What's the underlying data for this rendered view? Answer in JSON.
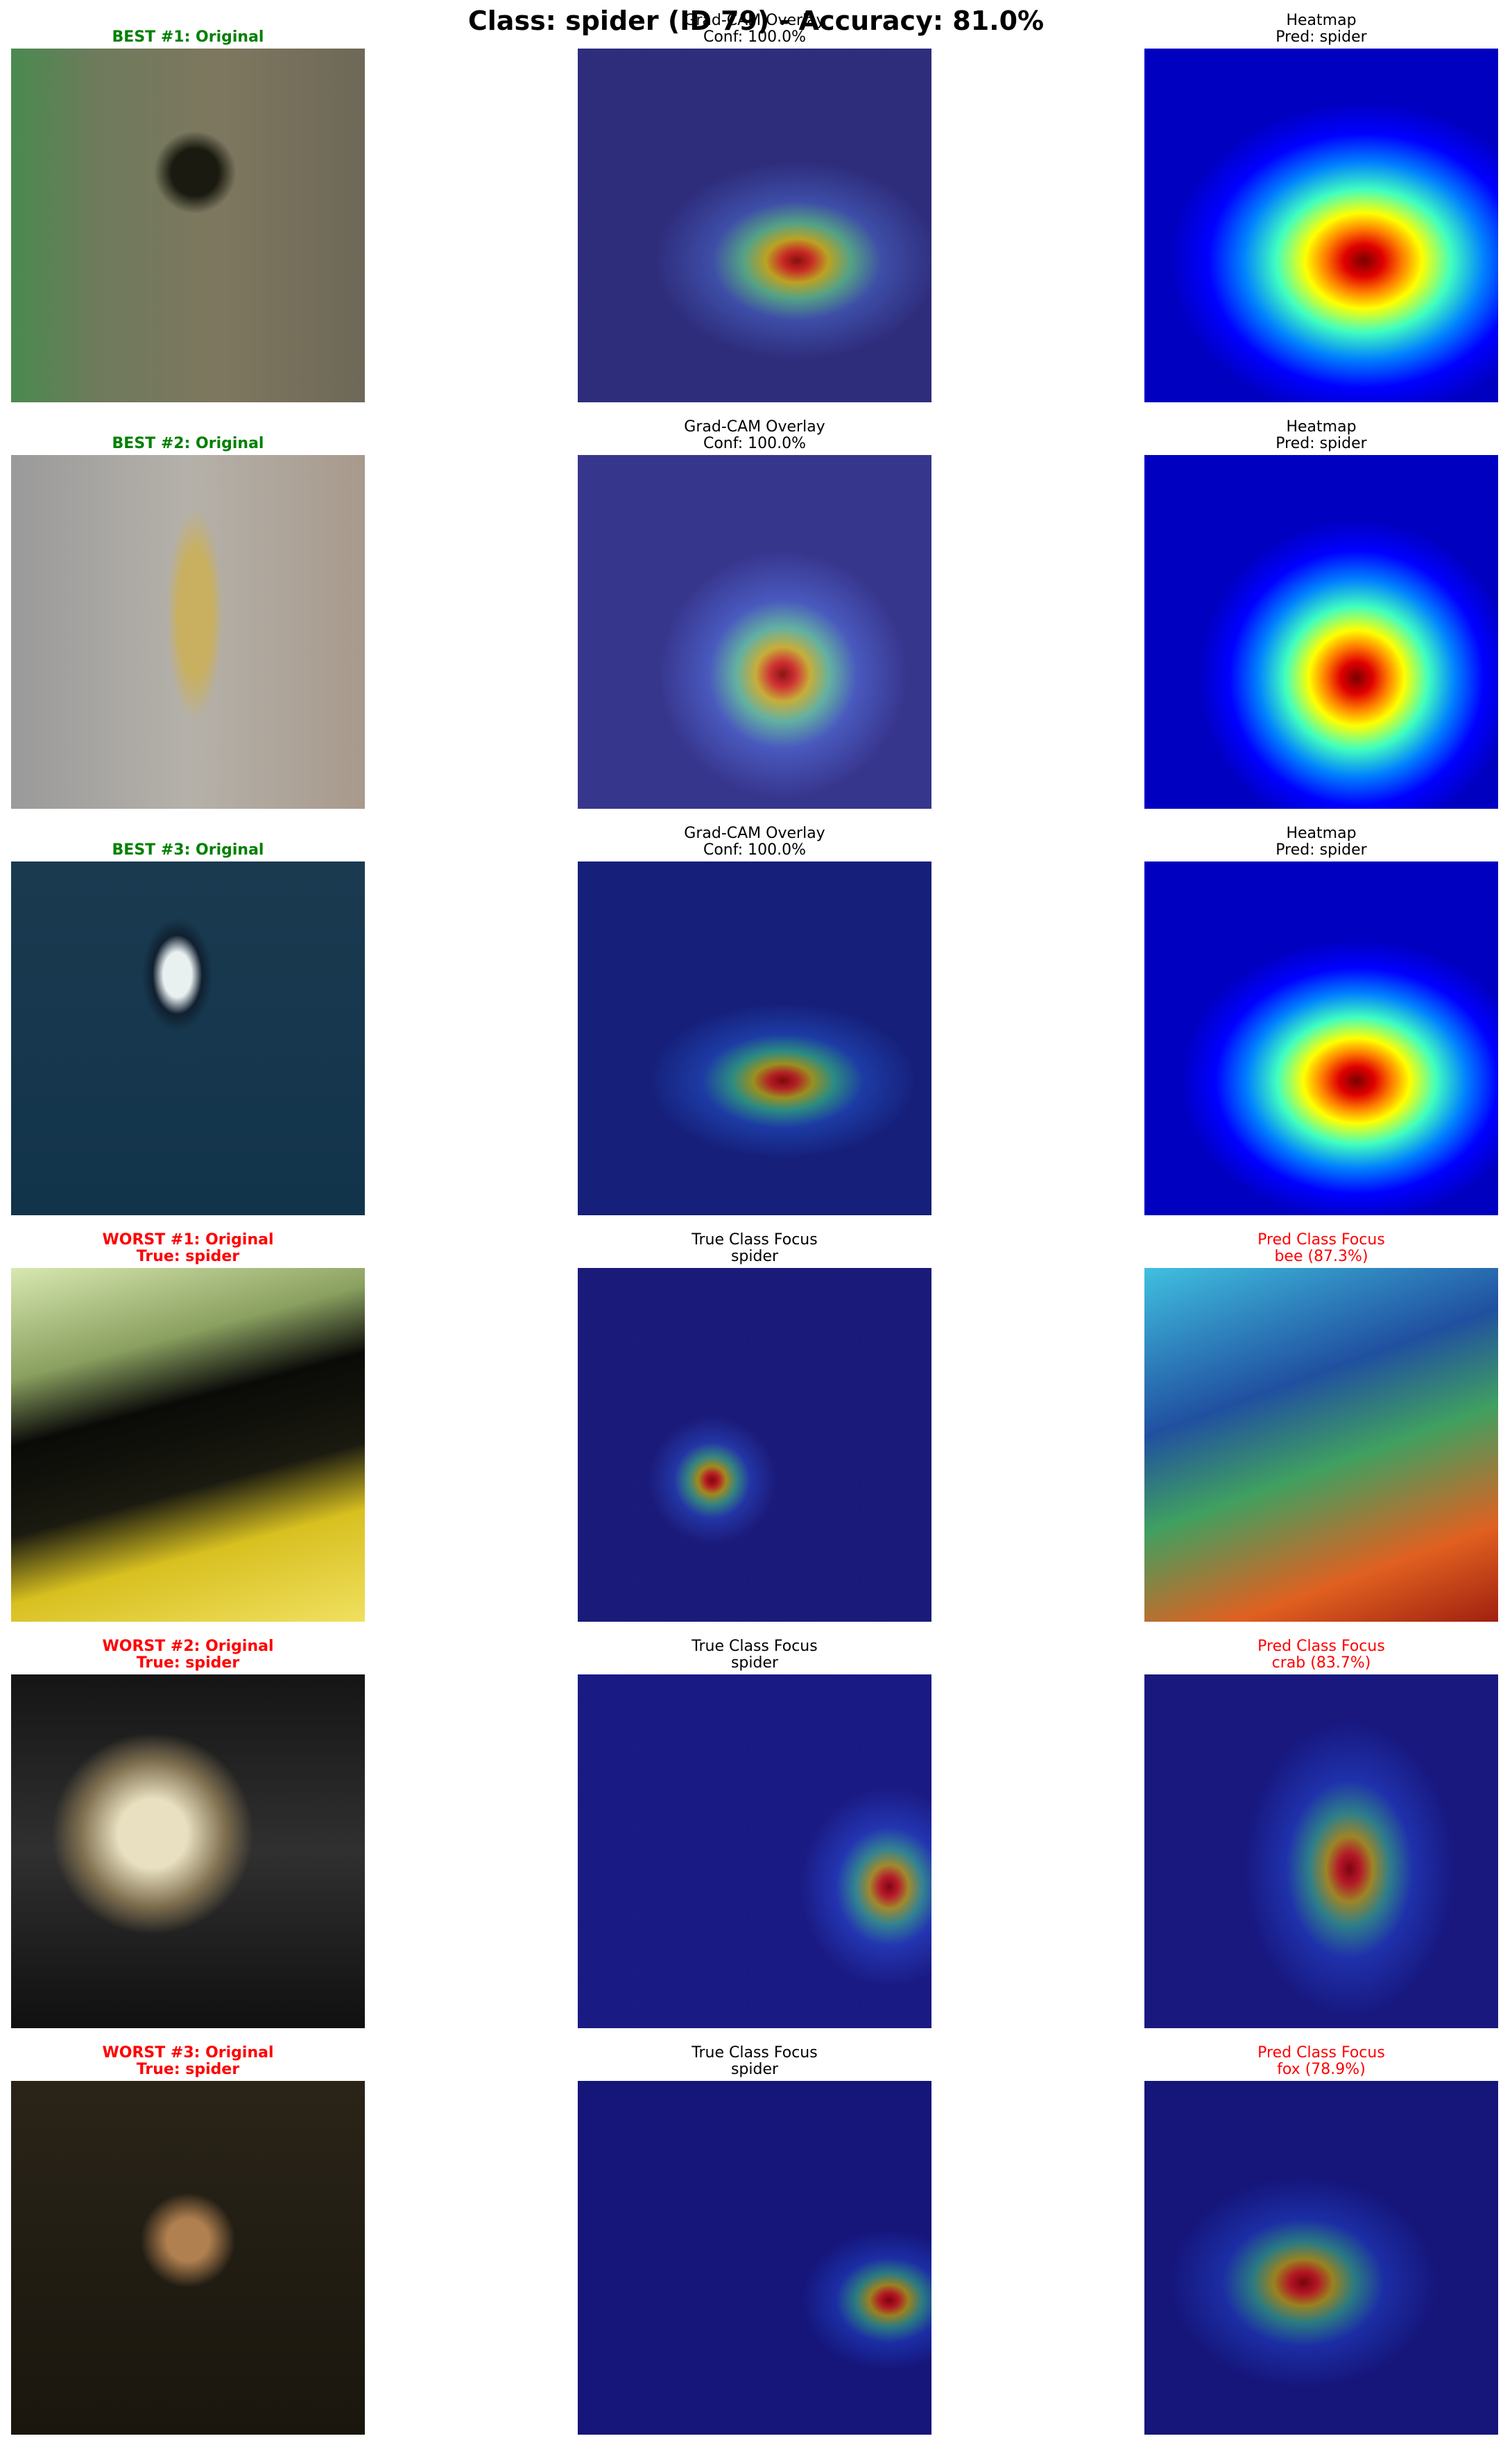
{
  "title": "Class: spider (ID 79) - Accuracy: 81.0%",
  "rows": [
    {
      "panels": [
        {
          "lines": [
            "BEST #1: Original"
          ],
          "color": "green",
          "bold": true
        },
        {
          "lines": [
            "Grad-CAM Overlay",
            "Conf: 100.0%"
          ]
        },
        {
          "lines": [
            "Heatmap",
            "Pred: spider"
          ]
        }
      ]
    },
    {
      "panels": [
        {
          "lines": [
            "BEST #2: Original"
          ],
          "color": "green",
          "bold": true
        },
        {
          "lines": [
            "Grad-CAM Overlay",
            "Conf: 100.0%"
          ]
        },
        {
          "lines": [
            "Heatmap",
            "Pred: spider"
          ]
        }
      ]
    },
    {
      "panels": [
        {
          "lines": [
            "BEST #3: Original"
          ],
          "color": "green",
          "bold": true
        },
        {
          "lines": [
            "Grad-CAM Overlay",
            "Conf: 100.0%"
          ]
        },
        {
          "lines": [
            "Heatmap",
            "Pred: spider"
          ]
        }
      ]
    },
    {
      "panels": [
        {
          "lines": [
            "WORST #1: Original",
            "True: spider"
          ],
          "color": "red",
          "bold": true
        },
        {
          "lines": [
            "True Class Focus",
            "spider"
          ]
        },
        {
          "lines": [
            "Pred Class Focus",
            "bee (87.3%)"
          ],
          "color": "red"
        }
      ]
    },
    {
      "panels": [
        {
          "lines": [
            "WORST #2: Original",
            "True: spider"
          ],
          "color": "red",
          "bold": true
        },
        {
          "lines": [
            "True Class Focus",
            "spider"
          ]
        },
        {
          "lines": [
            "Pred Class Focus",
            "crab (83.7%)"
          ],
          "color": "red"
        }
      ]
    },
    {
      "panels": [
        {
          "lines": [
            "WORST #3: Original",
            "True: spider"
          ],
          "color": "red",
          "bold": true
        },
        {
          "lines": [
            "True Class Focus",
            "spider"
          ]
        },
        {
          "lines": [
            "Pred Class Focus",
            "fox (78.9%)"
          ],
          "color": "red"
        }
      ]
    }
  ]
}
